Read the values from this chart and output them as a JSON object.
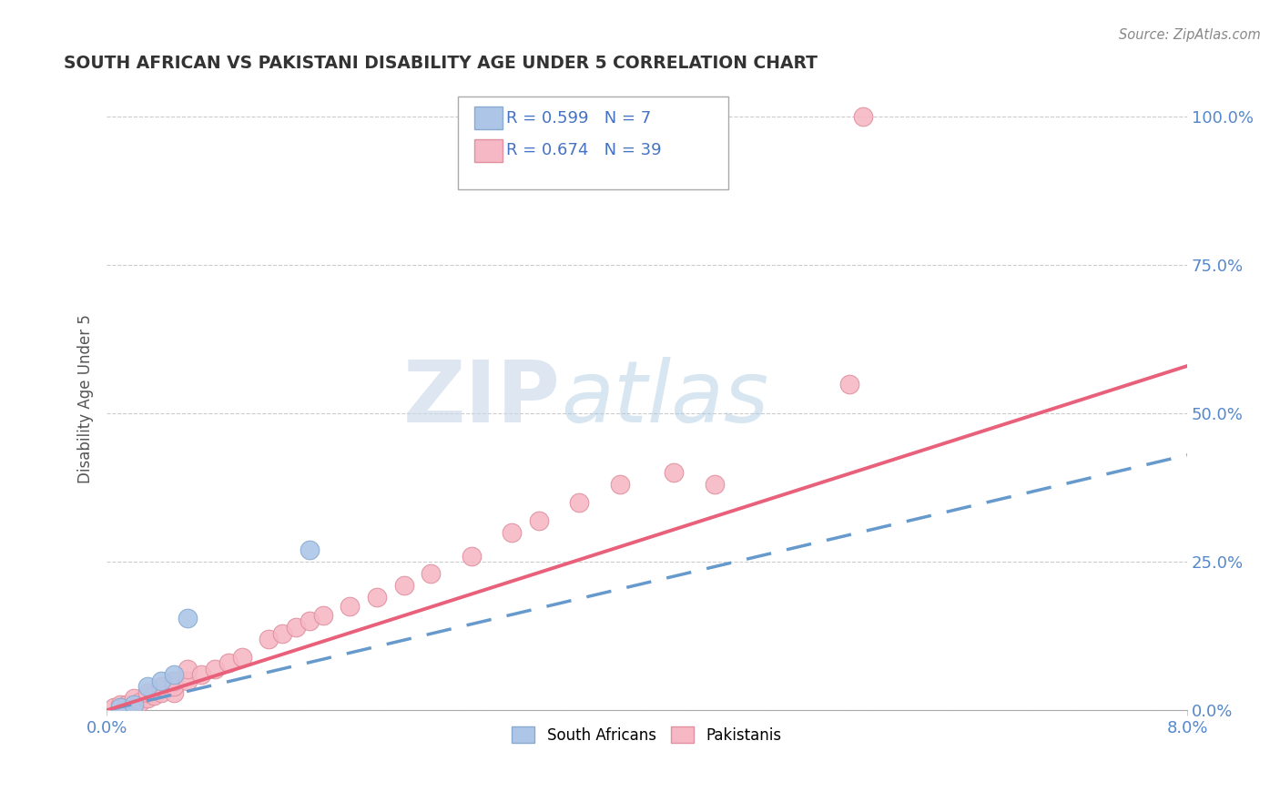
{
  "title": "SOUTH AFRICAN VS PAKISTANI DISABILITY AGE UNDER 5 CORRELATION CHART",
  "source": "Source: ZipAtlas.com",
  "ylabel": "Disability Age Under 5",
  "legend_label1": "South Africans",
  "legend_label2": "Pakistanis",
  "R_south_african": "0.599",
  "N_south_african": "7",
  "R_pakistani": "0.674",
  "N_pakistani": "39",
  "color_sa": "#adc6e8",
  "color_pk": "#f5b8c4",
  "color_sa_line": "#6699cc",
  "color_pk_line": "#e8607a",
  "ytick_labels": [
    "0.0%",
    "25.0%",
    "50.0%",
    "75.0%",
    "100.0%"
  ],
  "ytick_values": [
    0.0,
    0.25,
    0.5,
    0.75,
    1.0
  ],
  "xlim": [
    0.0,
    0.08
  ],
  "ylim": [
    0.0,
    1.05
  ],
  "watermark_zip": "ZIP",
  "watermark_atlas": "atlas",
  "title_color": "#333333",
  "axis_label_color": "#5588cc",
  "grid_color": "#cccccc",
  "sa_x": [
    0.001,
    0.002,
    0.003,
    0.004,
    0.005,
    0.006,
    0.015
  ],
  "sa_y": [
    0.005,
    0.01,
    0.04,
    0.05,
    0.06,
    0.155,
    0.27
  ],
  "pk_x": [
    0.0005,
    0.001,
    0.001,
    0.0015,
    0.002,
    0.002,
    0.0025,
    0.003,
    0.003,
    0.0035,
    0.004,
    0.004,
    0.005,
    0.005,
    0.005,
    0.006,
    0.006,
    0.007,
    0.008,
    0.009,
    0.01,
    0.012,
    0.013,
    0.014,
    0.015,
    0.016,
    0.018,
    0.02,
    0.022,
    0.024,
    0.027,
    0.03,
    0.032,
    0.035,
    0.038,
    0.042,
    0.045,
    0.055,
    0.056
  ],
  "pk_y": [
    0.005,
    0.005,
    0.01,
    0.01,
    0.01,
    0.02,
    0.015,
    0.02,
    0.03,
    0.025,
    0.03,
    0.04,
    0.03,
    0.04,
    0.05,
    0.05,
    0.07,
    0.06,
    0.07,
    0.08,
    0.09,
    0.12,
    0.13,
    0.14,
    0.15,
    0.16,
    0.175,
    0.19,
    0.21,
    0.23,
    0.26,
    0.3,
    0.32,
    0.35,
    0.38,
    0.4,
    0.38,
    0.55,
    1.0
  ],
  "sa_line_x0": 0.0,
  "sa_line_y0": 0.0,
  "sa_line_x1": 0.08,
  "sa_line_y1": 0.43,
  "pk_line_x0": 0.0,
  "pk_line_y0": 0.0,
  "pk_line_x1": 0.08,
  "pk_line_y1": 0.58
}
